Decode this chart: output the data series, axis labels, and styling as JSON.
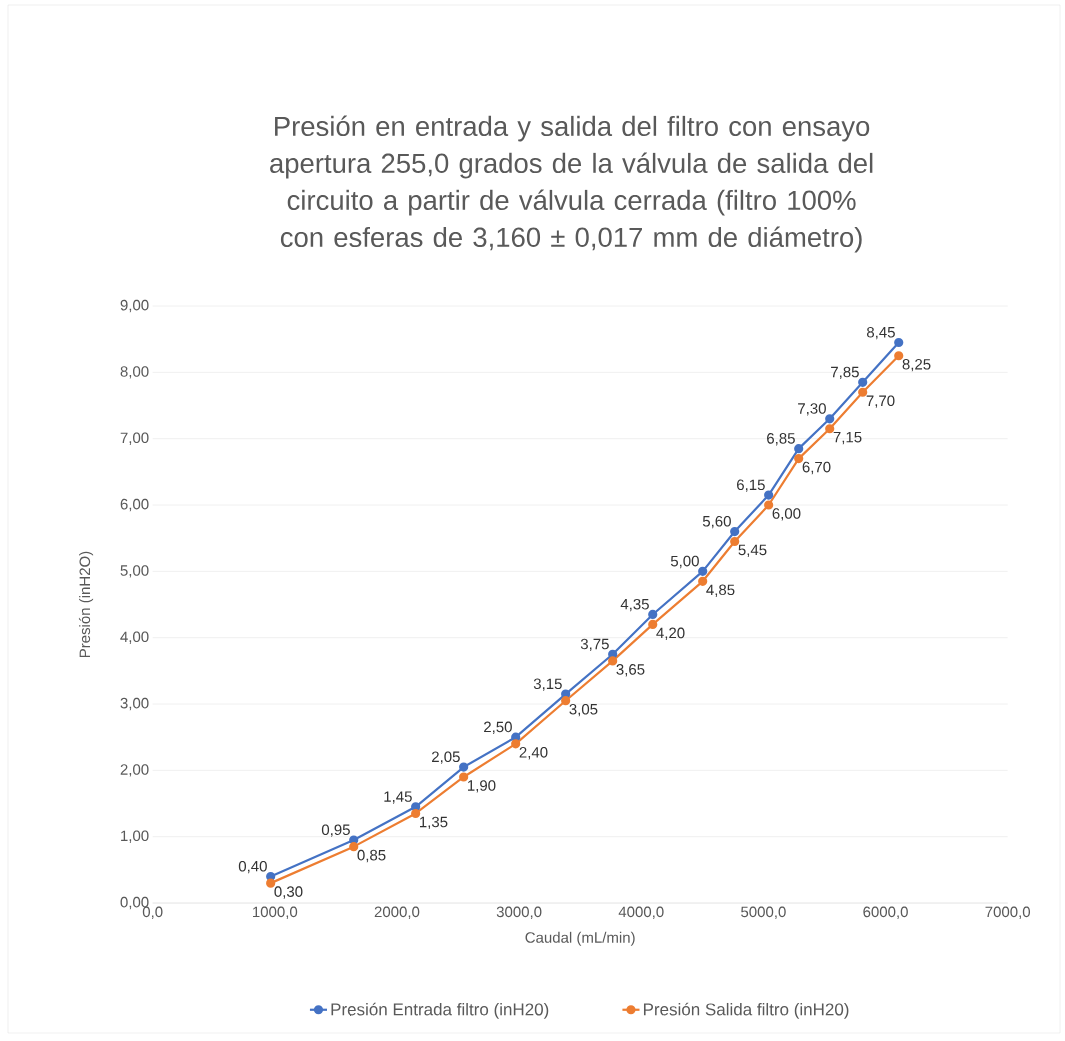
{
  "chart_data": {
    "type": "line",
    "title": "Presión en entrada y salida del filtro con ensayo apertura 255,0 grados de la válvula de salida del circuito a partir de válvula cerrada (filtro 100% con esferas de 3,160 ± 0,017 mm de diámetro)",
    "xlabel": "Caudal (mL/min)",
    "ylabel": "Presión  (inH2O)",
    "x": [
      966,
      1646,
      2153,
      2546,
      2972,
      3381,
      3766,
      4094,
      4503,
      4765,
      5043,
      5289,
      5543,
      5813,
      6108
    ],
    "series": [
      {
        "name": "Presión Entrada filtro (inH20)",
        "color": "#4472c4",
        "values": [
          0.4,
          0.95,
          1.45,
          2.05,
          2.5,
          3.15,
          3.75,
          4.35,
          5.0,
          5.6,
          6.15,
          6.85,
          7.3,
          7.85,
          8.45
        ],
        "value_labels": [
          "0,40",
          "0,95",
          "1,45",
          "2,05",
          "2,50",
          "3,15",
          "3,75",
          "4,35",
          "5,00",
          "5,60",
          "6,15",
          "6,85",
          "7,30",
          "7,85",
          "8,45"
        ]
      },
      {
        "name": "Presión Salida filtro (inH20)",
        "color": "#ed7d31",
        "values": [
          0.3,
          0.85,
          1.35,
          1.9,
          2.4,
          3.05,
          3.65,
          4.2,
          4.85,
          5.45,
          6.0,
          6.7,
          7.15,
          7.7,
          8.25
        ],
        "value_labels": [
          "0,30",
          "0,85",
          "1,35",
          "1,90",
          "2,40",
          "3,05",
          "3,65",
          "4,20",
          "4,85",
          "5,45",
          "6,00",
          "6,70",
          "7,15",
          "7,70",
          "8,25"
        ]
      }
    ],
    "xlim": [
      0,
      7000
    ],
    "xticks": [
      {
        "value": 0,
        "label": "0,0"
      },
      {
        "value": 1000,
        "label": "1000,0"
      },
      {
        "value": 2000,
        "label": "2000,0"
      },
      {
        "value": 3000,
        "label": "3000,0"
      },
      {
        "value": 4000,
        "label": "4000,0"
      },
      {
        "value": 5000,
        "label": "5000,0"
      },
      {
        "value": 6000,
        "label": "6000,0"
      },
      {
        "value": 7000,
        "label": "7000,0"
      }
    ],
    "ylim": [
      0,
      9
    ],
    "yticks": [
      {
        "value": 0,
        "label": "0,00"
      },
      {
        "value": 1,
        "label": "1,00"
      },
      {
        "value": 2,
        "label": "2,00"
      },
      {
        "value": 3,
        "label": "3,00"
      },
      {
        "value": 4,
        "label": "4,00"
      },
      {
        "value": 5,
        "label": "5,00"
      },
      {
        "value": 6,
        "label": "6,00"
      },
      {
        "value": 7,
        "label": "7,00"
      },
      {
        "value": 8,
        "label": "8,00"
      },
      {
        "value": 9,
        "label": "9,00"
      }
    ],
    "grid": "y",
    "legend": "bottom",
    "marker": "circle",
    "line_style": "solid"
  }
}
